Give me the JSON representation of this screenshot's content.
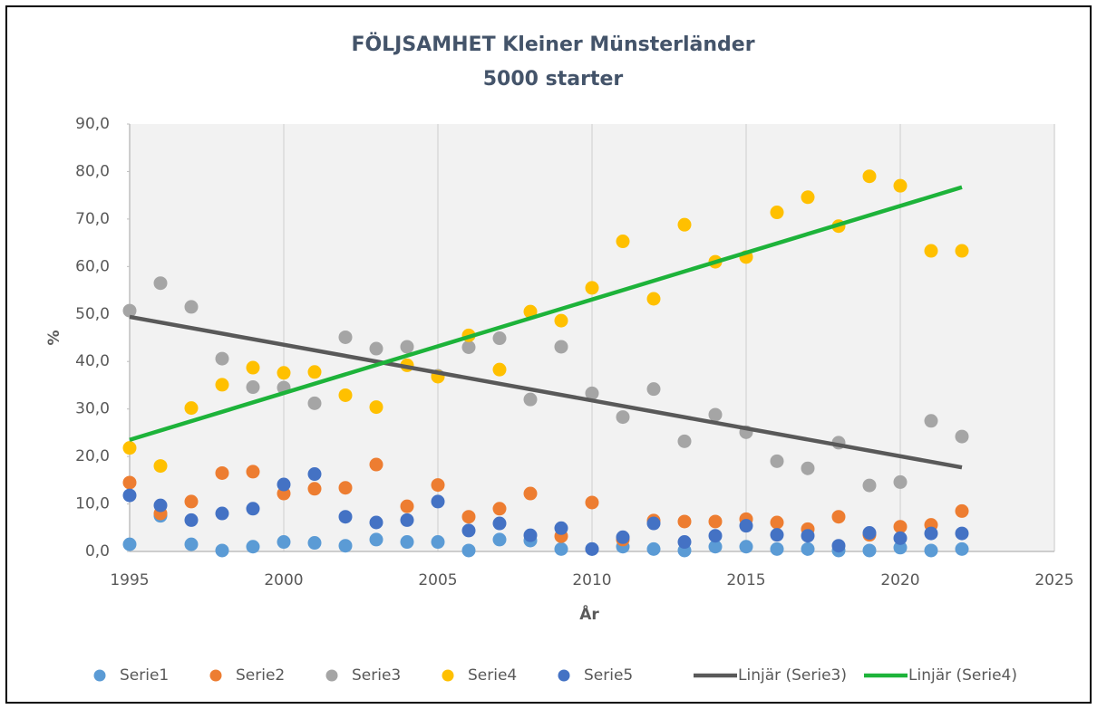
{
  "chart_data": {
    "type": "scatter",
    "title": "FÖLJSAMHET Kleiner Münsterländer",
    "subtitle": "5000 starter",
    "xlabel": "År",
    "ylabel": "%",
    "xlim": [
      1995,
      2025
    ],
    "xticks": [
      1995,
      2000,
      2005,
      2010,
      2015,
      2020,
      2025
    ],
    "ylim": [
      0,
      90
    ],
    "yticks": [
      {
        "value": 0,
        "label": "0,0"
      },
      {
        "value": 10,
        "label": "10,0"
      },
      {
        "value": 20,
        "label": "20,0"
      },
      {
        "value": 30,
        "label": "30,0"
      },
      {
        "value": 40,
        "label": "40,0"
      },
      {
        "value": 50,
        "label": "50,0"
      },
      {
        "value": 60,
        "label": "60,0"
      },
      {
        "value": 70,
        "label": "70,0"
      },
      {
        "value": 80,
        "label": "80,0"
      },
      {
        "value": 90,
        "label": "90,0"
      }
    ],
    "xgrid": true,
    "legend": "bottom",
    "x": [
      1995,
      1996,
      1997,
      1998,
      1999,
      2000,
      2001,
      2002,
      2003,
      2004,
      2005,
      2006,
      2007,
      2008,
      2009,
      2010,
      2011,
      2012,
      2013,
      2014,
      2015,
      2016,
      2017,
      2018,
      2019,
      2020,
      2021,
      2022
    ],
    "series": [
      {
        "name": "Serie1",
        "color": "#5b9bd5",
        "values": [
          1.5,
          7.5,
          1.5,
          0.2,
          1.0,
          2.0,
          1.8,
          1.2,
          2.5,
          2.0,
          2.0,
          0.2,
          2.5,
          2.3,
          0.5,
          0.5,
          1.0,
          0.5,
          0.2,
          1.0,
          1.0,
          0.5,
          0.5,
          0.2,
          0.2,
          0.8,
          0.2,
          0.5
        ]
      },
      {
        "name": "Serie2",
        "color": "#ed7d31",
        "values": [
          14.5,
          8.0,
          10.5,
          16.5,
          16.8,
          12.2,
          13.2,
          13.4,
          18.3,
          9.5,
          14.0,
          7.3,
          9.0,
          12.2,
          3.2,
          10.3,
          2.5,
          6.5,
          6.3,
          6.3,
          6.8,
          6.1,
          4.7,
          7.3,
          3.5,
          5.2,
          5.6,
          8.5
        ]
      },
      {
        "name": "Serie3",
        "color": "#a5a5a5",
        "values": [
          50.7,
          56.5,
          51.5,
          40.6,
          34.6,
          34.5,
          31.2,
          45.1,
          42.7,
          43.1,
          37.0,
          43.0,
          44.9,
          32.0,
          43.1,
          33.3,
          28.3,
          34.2,
          23.2,
          28.8,
          25.1,
          19.0,
          17.5,
          22.9,
          13.9,
          14.6,
          27.5,
          24.2
        ]
      },
      {
        "name": "Serie4",
        "color": "#ffc000",
        "values": [
          21.8,
          18.0,
          30.2,
          35.1,
          38.7,
          37.6,
          37.8,
          32.9,
          30.4,
          39.2,
          36.8,
          45.5,
          38.3,
          50.5,
          48.6,
          55.5,
          65.3,
          53.2,
          68.8,
          61.0,
          62.0,
          71.4,
          74.6,
          68.5,
          79.0,
          77.0,
          63.3,
          63.3
        ]
      },
      {
        "name": "Serie5",
        "color": "#4472c4",
        "values": [
          11.8,
          9.7,
          6.6,
          8.0,
          9.0,
          14.1,
          16.3,
          7.3,
          6.1,
          6.6,
          10.5,
          4.4,
          5.9,
          3.4,
          4.9,
          0.5,
          3.0,
          5.9,
          2.0,
          3.3,
          5.4,
          3.5,
          3.3,
          1.2,
          3.9,
          2.8,
          3.8,
          3.8
        ]
      },
      {
        "name": "Linjär (Serie3)",
        "color": "#595959",
        "type": "line",
        "x": [
          1995,
          2022
        ],
        "values": [
          49.4,
          17.7
        ]
      },
      {
        "name": "Linjär (Serie4)",
        "color": "#1db33a",
        "type": "line",
        "x": [
          1995,
          2022
        ],
        "values": [
          23.5,
          76.7
        ]
      }
    ]
  }
}
